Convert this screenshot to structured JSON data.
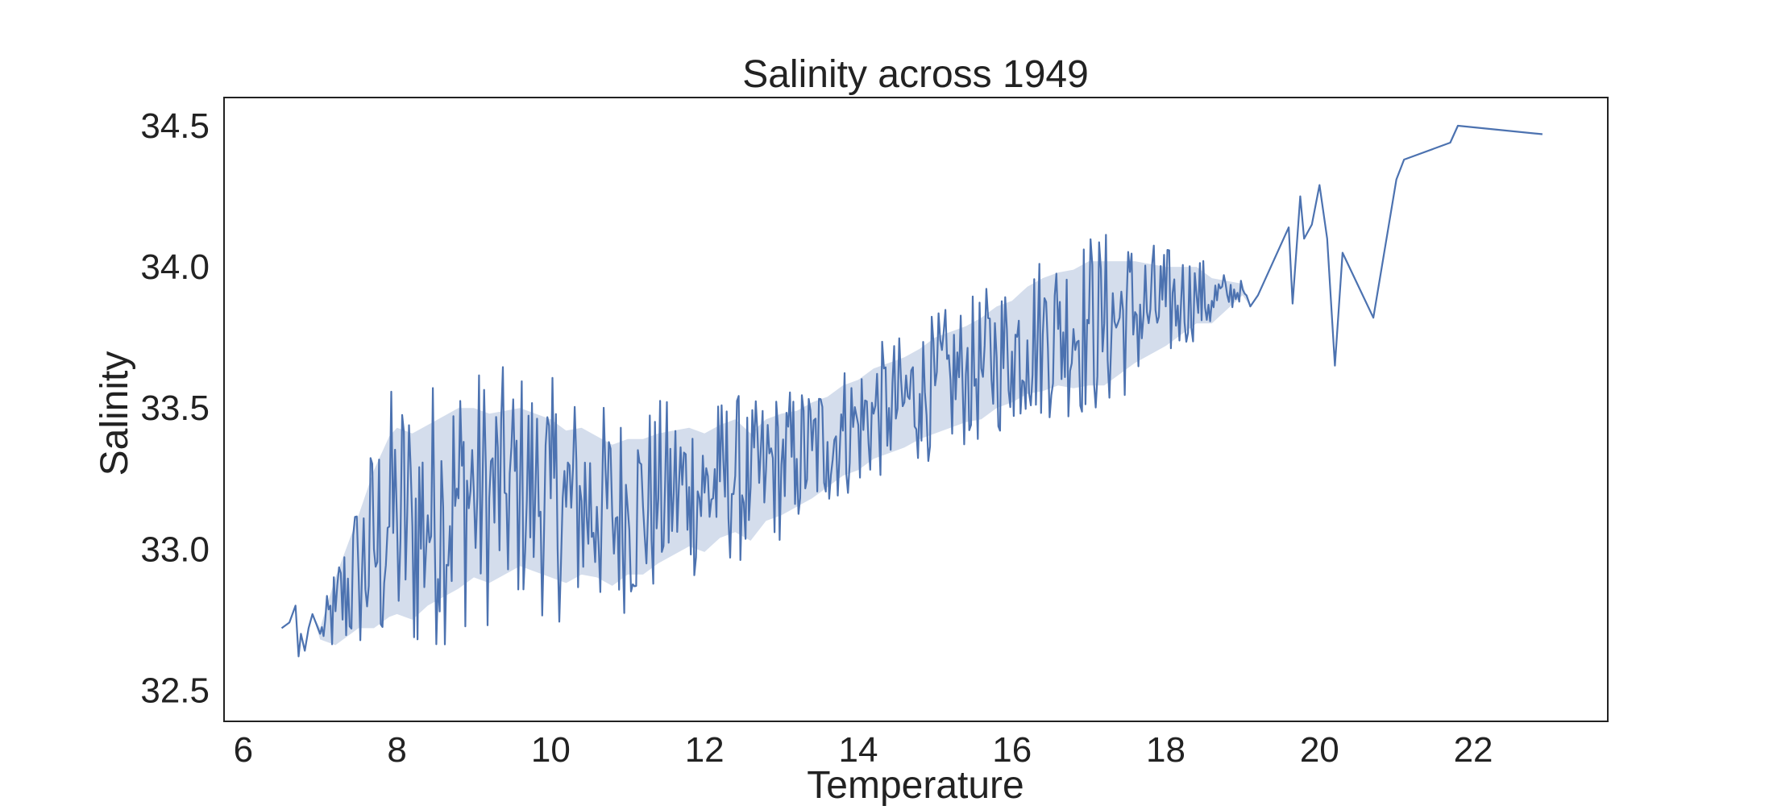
{
  "chart_data": {
    "type": "line",
    "title": "Salinity across 1949",
    "xlabel": "Temperature",
    "ylabel": "Salinity",
    "xlim": [
      5.75,
      23.75
    ],
    "ylim": [
      32.39,
      34.6
    ],
    "xticks": [
      6,
      8,
      10,
      12,
      14,
      16,
      18,
      20,
      22
    ],
    "xtick_labels": [
      "6",
      "8",
      "10",
      "12",
      "14",
      "16",
      "18",
      "20",
      "22"
    ],
    "yticks": [
      32.5,
      33.0,
      33.5,
      34.0,
      34.5
    ],
    "ytick_labels": [
      "32.5",
      "33.0",
      "33.5",
      "34.0",
      "34.5"
    ],
    "grid": false,
    "legend": "none",
    "colors": {
      "line": "#4c72b0",
      "band": "#c5d1e6",
      "frame": "#222222"
    },
    "series": [
      {
        "band_description": "light confidence band around the mean salinity line",
        "x": [
          6.5,
          6.6,
          6.68,
          6.72,
          6.75,
          6.8,
          6.85,
          6.9,
          7.0,
          7.2,
          7.5,
          7.7,
          7.9,
          8.0,
          8.2,
          8.4,
          8.6,
          8.8,
          9.0,
          9.2,
          9.4,
          9.6,
          9.8,
          10.0,
          10.2,
          10.4,
          10.6,
          10.8,
          11.0,
          11.2,
          11.4,
          11.6,
          11.8,
          12.0,
          12.2,
          12.4,
          12.6,
          12.8,
          13.0,
          13.2,
          13.4,
          13.6,
          13.8,
          14.0,
          14.2,
          14.4,
          14.6,
          14.8,
          15.0,
          15.2,
          15.4,
          15.6,
          15.8,
          16.0,
          16.2,
          16.4,
          16.6,
          16.8,
          17.0,
          17.2,
          17.4,
          17.6,
          17.8,
          18.0,
          18.2,
          18.4,
          18.6,
          18.8,
          19.0,
          19.1,
          19.2,
          19.6,
          19.65,
          19.75,
          19.8,
          19.9,
          20.0,
          20.1,
          20.2,
          20.3,
          20.7,
          21.0,
          21.1,
          21.2,
          21.7,
          21.8,
          22.9
        ],
        "y": [
          32.72,
          32.74,
          32.8,
          32.62,
          32.7,
          32.64,
          32.72,
          32.77,
          32.7,
          32.78,
          32.92,
          33.0,
          33.08,
          33.1,
          33.08,
          33.12,
          33.15,
          33.18,
          33.2,
          33.18,
          33.2,
          33.22,
          33.2,
          33.18,
          33.15,
          33.17,
          33.15,
          33.12,
          33.15,
          33.15,
          33.18,
          33.2,
          33.22,
          33.2,
          33.24,
          33.26,
          33.22,
          33.28,
          33.3,
          33.32,
          33.35,
          33.38,
          33.42,
          33.44,
          33.48,
          33.5,
          33.52,
          33.55,
          33.58,
          33.6,
          33.62,
          33.64,
          33.68,
          33.7,
          33.74,
          33.76,
          33.78,
          33.78,
          33.8,
          33.8,
          33.82,
          33.84,
          33.85,
          33.86,
          33.88,
          33.9,
          33.88,
          33.9,
          33.92,
          33.86,
          33.9,
          34.14,
          33.87,
          34.25,
          34.1,
          34.15,
          34.29,
          34.1,
          33.65,
          34.05,
          33.82,
          34.31,
          34.38,
          34.39,
          34.44,
          34.5,
          34.47
        ],
        "spread": [
          0.0,
          0.0,
          0.0,
          0.0,
          0.0,
          0.0,
          0.0,
          0.0,
          0.02,
          0.12,
          0.2,
          0.28,
          0.32,
          0.33,
          0.33,
          0.32,
          0.32,
          0.32,
          0.3,
          0.3,
          0.29,
          0.28,
          0.28,
          0.28,
          0.27,
          0.26,
          0.25,
          0.25,
          0.24,
          0.24,
          0.23,
          0.22,
          0.21,
          0.21,
          0.2,
          0.2,
          0.19,
          0.18,
          0.18,
          0.17,
          0.17,
          0.16,
          0.16,
          0.16,
          0.16,
          0.16,
          0.16,
          0.16,
          0.17,
          0.17,
          0.17,
          0.18,
          0.18,
          0.18,
          0.19,
          0.2,
          0.2,
          0.21,
          0.22,
          0.22,
          0.2,
          0.18,
          0.16,
          0.14,
          0.12,
          0.1,
          0.08,
          0.05,
          0.02,
          0.0,
          0.0,
          0.0,
          0.0,
          0.0,
          0.0,
          0.0,
          0.0,
          0.0,
          0.0,
          0.0,
          0.0,
          0.0,
          0.0,
          0.0,
          0.0,
          0.0,
          0.0
        ]
      }
    ]
  }
}
